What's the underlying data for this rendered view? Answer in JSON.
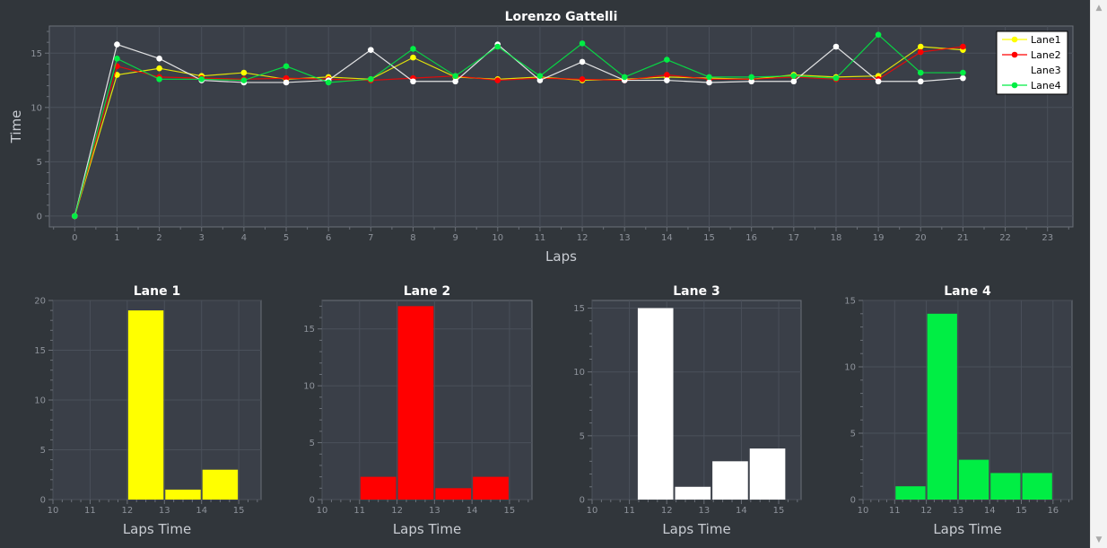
{
  "chart_data": [
    {
      "type": "line",
      "title": "Lorenzo Gattelli",
      "xlabel": "Laps",
      "ylabel": "Time",
      "xlim": [
        -0.6,
        23.6
      ],
      "ylim": [
        -1,
        17.5
      ],
      "xticks": [
        0,
        1,
        2,
        3,
        4,
        5,
        6,
        7,
        8,
        9,
        10,
        11,
        12,
        13,
        14,
        15,
        16,
        17,
        18,
        19,
        20,
        21,
        22,
        23
      ],
      "yticks": [
        0,
        5,
        10,
        15
      ],
      "grid": true,
      "legend_position": "top-right",
      "series": [
        {
          "name": "Lane1",
          "color": "#ffff00",
          "x": [
            0,
            1,
            2,
            3,
            4,
            5,
            6,
            7,
            8,
            9,
            10,
            11,
            12,
            13,
            14,
            15,
            16,
            17,
            18,
            19,
            20,
            21
          ],
          "y": [
            0,
            13.0,
            13.6,
            12.9,
            13.2,
            12.6,
            12.8,
            12.6,
            14.6,
            12.8,
            12.6,
            12.8,
            12.5,
            12.6,
            12.8,
            12.7,
            12.6,
            13.0,
            12.8,
            12.9,
            15.6,
            15.3
          ]
        },
        {
          "name": "Lane2",
          "color": "#ff0000",
          "x": [
            0,
            1,
            2,
            3,
            4,
            5,
            6,
            7,
            8,
            9,
            10,
            11,
            12,
            13,
            14,
            15,
            16,
            17,
            18,
            19,
            20,
            21
          ],
          "y": [
            0,
            13.8,
            12.8,
            12.7,
            12.6,
            12.7,
            12.6,
            12.5,
            12.7,
            12.9,
            12.5,
            12.7,
            12.6,
            12.5,
            13.0,
            12.6,
            12.6,
            12.8,
            12.6,
            12.6,
            15.1,
            15.6
          ]
        },
        {
          "name": "Lane3",
          "color": "#ffffff",
          "x": [
            0,
            1,
            2,
            3,
            4,
            5,
            6,
            7,
            8,
            9,
            10,
            11,
            12,
            13,
            14,
            15,
            16,
            17,
            18,
            19,
            20,
            21
          ],
          "y": [
            0,
            15.8,
            14.5,
            12.5,
            12.3,
            12.3,
            12.5,
            15.3,
            12.4,
            12.4,
            15.8,
            12.5,
            14.2,
            12.5,
            12.5,
            12.3,
            12.4,
            12.4,
            15.6,
            12.4,
            12.4,
            12.7
          ]
        },
        {
          "name": "Lane4",
          "color": "#00ee44",
          "x": [
            0,
            1,
            2,
            3,
            4,
            5,
            6,
            7,
            8,
            9,
            10,
            11,
            12,
            13,
            14,
            15,
            16,
            17,
            18,
            19,
            20,
            21
          ],
          "y": [
            0,
            14.5,
            12.6,
            12.6,
            12.5,
            13.8,
            12.3,
            12.6,
            15.4,
            12.9,
            15.6,
            12.9,
            15.9,
            12.8,
            14.4,
            12.8,
            12.8,
            12.9,
            12.7,
            16.7,
            13.2,
            13.2
          ]
        }
      ]
    },
    {
      "type": "bar",
      "title": "Lane 1",
      "xlabel": "Laps Time",
      "ylabel": "",
      "color": "#ffff00",
      "xlim": [
        10,
        15.6
      ],
      "ylim": [
        0,
        20
      ],
      "xticks": [
        10,
        11,
        12,
        13,
        14,
        15
      ],
      "yticks": [
        0,
        5,
        10,
        15,
        20
      ],
      "bins": [
        [
          12.0,
          13.0,
          19
        ],
        [
          13.0,
          14.0,
          1
        ],
        [
          14.0,
          15.0,
          3
        ]
      ]
    },
    {
      "type": "bar",
      "title": "Lane 2",
      "xlabel": "Laps Time",
      "ylabel": "",
      "color": "#ff0000",
      "xlim": [
        10,
        15.6
      ],
      "ylim": [
        0,
        17.5
      ],
      "xticks": [
        10,
        11,
        12,
        13,
        14,
        15
      ],
      "yticks": [
        0,
        5,
        10,
        15
      ],
      "bins": [
        [
          11.0,
          12.0,
          2
        ],
        [
          12.0,
          13.0,
          17
        ],
        [
          13.0,
          14.0,
          1
        ],
        [
          14.0,
          15.0,
          2
        ]
      ]
    },
    {
      "type": "bar",
      "title": "Lane 3",
      "xlabel": "Laps Time",
      "ylabel": "",
      "color": "#ffffff",
      "xlim": [
        10,
        15.6
      ],
      "ylim": [
        0,
        15.6
      ],
      "xticks": [
        10,
        11,
        12,
        13,
        14,
        15
      ],
      "yticks": [
        0,
        5,
        10,
        15
      ],
      "bins": [
        [
          11.2,
          12.2,
          15
        ],
        [
          12.2,
          13.2,
          1
        ],
        [
          13.2,
          14.2,
          3
        ],
        [
          14.2,
          15.2,
          4
        ]
      ]
    },
    {
      "type": "bar",
      "title": "Lane 4",
      "xlabel": "Laps Time",
      "ylabel": "",
      "color": "#00ee44",
      "xlim": [
        10,
        16.6
      ],
      "ylim": [
        0,
        15
      ],
      "xticks": [
        10,
        11,
        12,
        13,
        14,
        15,
        16
      ],
      "yticks": [
        0,
        5,
        10,
        15
      ],
      "bins": [
        [
          11.0,
          12.0,
          1
        ],
        [
          12.0,
          13.0,
          14
        ],
        [
          13.0,
          14.0,
          3
        ],
        [
          14.0,
          15.0,
          2
        ],
        [
          15.0,
          16.0,
          2
        ]
      ]
    }
  ]
}
